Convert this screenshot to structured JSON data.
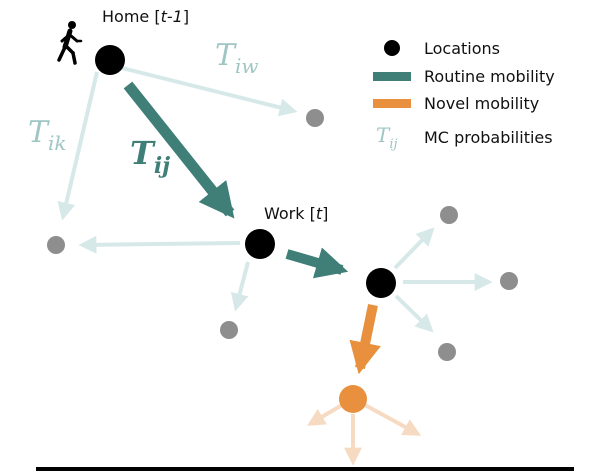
{
  "nodes": {
    "home": {
      "label_main": "Home [",
      "label_em": "t-1",
      "label_end": "]"
    },
    "work": {
      "label_main": "Work [",
      "label_em": "t",
      "label_end": "]"
    }
  },
  "transitions": {
    "t_iw": {
      "symbol": "T",
      "sub": "iw"
    },
    "t_ik": {
      "symbol": "T",
      "sub": "ik"
    },
    "t_ij": {
      "symbol": "T",
      "sub": "ij"
    }
  },
  "legend": {
    "locations": "Locations",
    "routine": "Routine mobility",
    "novel": "Novel mobility",
    "mc_symbol": "T",
    "mc_sub": "ij",
    "mc_label": "MC probabilities"
  },
  "colors": {
    "routine": "#3f7f78",
    "routine_light": "#d6e8e8",
    "novel": "#e8903d",
    "novel_light": "#f6dbc2",
    "location": "#000000",
    "unvisited": "#8e8e8e",
    "t_light": "#9fc6c4"
  }
}
